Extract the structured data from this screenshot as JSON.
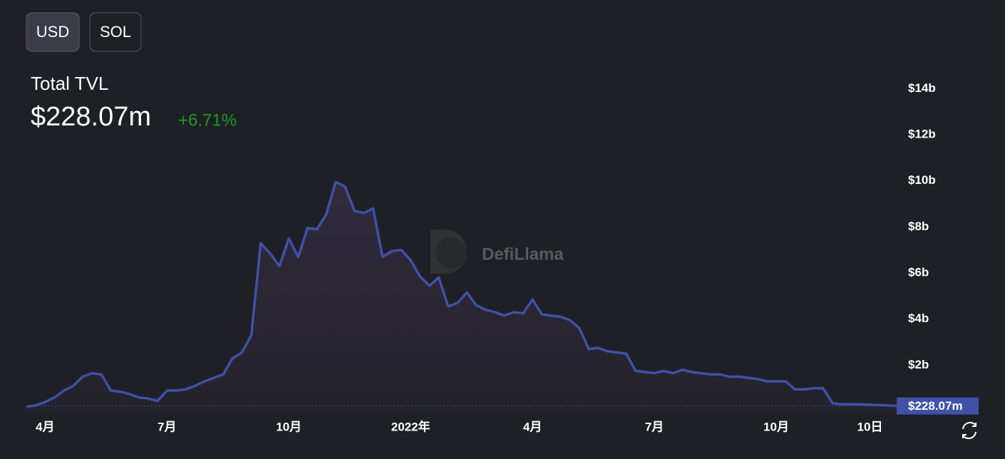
{
  "header": {
    "buttons": [
      "USD",
      "SOL"
    ],
    "title": "Total TVL",
    "total": "$228.07m",
    "change": "+6.71%"
  },
  "chart_data": {
    "type": "area",
    "watermark": "DefiLlama",
    "categories": [
      null,
      null,
      "4月",
      null,
      null,
      null,
      null,
      null,
      null,
      null,
      null,
      null,
      null,
      null,
      null,
      "7月",
      null,
      null,
      null,
      null,
      null,
      null,
      null,
      null,
      null,
      null,
      null,
      null,
      "10月",
      null,
      null,
      null,
      null,
      null,
      null,
      null,
      null,
      null,
      null,
      null,
      null,
      "2022年",
      null,
      null,
      null,
      null,
      null,
      null,
      null,
      null,
      null,
      null,
      null,
      null,
      "4月",
      null,
      null,
      null,
      null,
      null,
      null,
      null,
      null,
      null,
      null,
      null,
      null,
      "7月",
      null,
      null,
      null,
      null,
      null,
      null,
      null,
      null,
      null,
      null,
      null,
      null,
      "10月",
      null,
      null,
      null,
      null,
      null,
      null,
      null,
      null,
      null,
      "10日",
      null,
      null,
      null
    ],
    "series": [
      {
        "name": "TVL",
        "color": "#3f51a8",
        "values": [
          0.2,
          0.25,
          0.4,
          0.6,
          0.9,
          1.1,
          1.5,
          1.65,
          1.6,
          0.9,
          0.85,
          0.75,
          0.6,
          0.55,
          0.45,
          0.9,
          0.9,
          0.95,
          1.1,
          1.3,
          1.45,
          1.6,
          2.3,
          2.55,
          3.3,
          7.3,
          6.85,
          6.3,
          7.5,
          6.7,
          7.95,
          7.9,
          8.55,
          9.95,
          9.75,
          8.7,
          8.6,
          8.8,
          6.7,
          6.95,
          7.0,
          6.55,
          5.85,
          5.45,
          5.8,
          4.55,
          4.7,
          5.15,
          4.6,
          4.4,
          4.3,
          4.15,
          4.3,
          4.25,
          4.85,
          4.2,
          4.15,
          4.1,
          3.95,
          3.6,
          2.7,
          2.75,
          2.6,
          2.55,
          2.5,
          1.75,
          1.7,
          1.65,
          1.75,
          1.65,
          1.8,
          1.7,
          1.65,
          1.6,
          1.6,
          1.5,
          1.5,
          1.45,
          1.4,
          1.3,
          1.3,
          1.3,
          0.95,
          0.95,
          1.0,
          1.0,
          0.35,
          0.3,
          0.3,
          0.3,
          0.28,
          0.27,
          0.25,
          0.22807
        ]
      }
    ],
    "ylim": [
      0,
      15
    ],
    "yticks": [
      {
        "value": 2,
        "label": "$2b"
      },
      {
        "value": 4,
        "label": "$4b"
      },
      {
        "value": 6,
        "label": "$6b"
      },
      {
        "value": 8,
        "label": "$8b"
      },
      {
        "value": 10,
        "label": "$10b"
      },
      {
        "value": 12,
        "label": "$12b"
      },
      {
        "value": 14,
        "label": "$14b"
      }
    ],
    "last_label": {
      "value": 0.22807,
      "label": "$228.07m"
    },
    "grid": false
  }
}
